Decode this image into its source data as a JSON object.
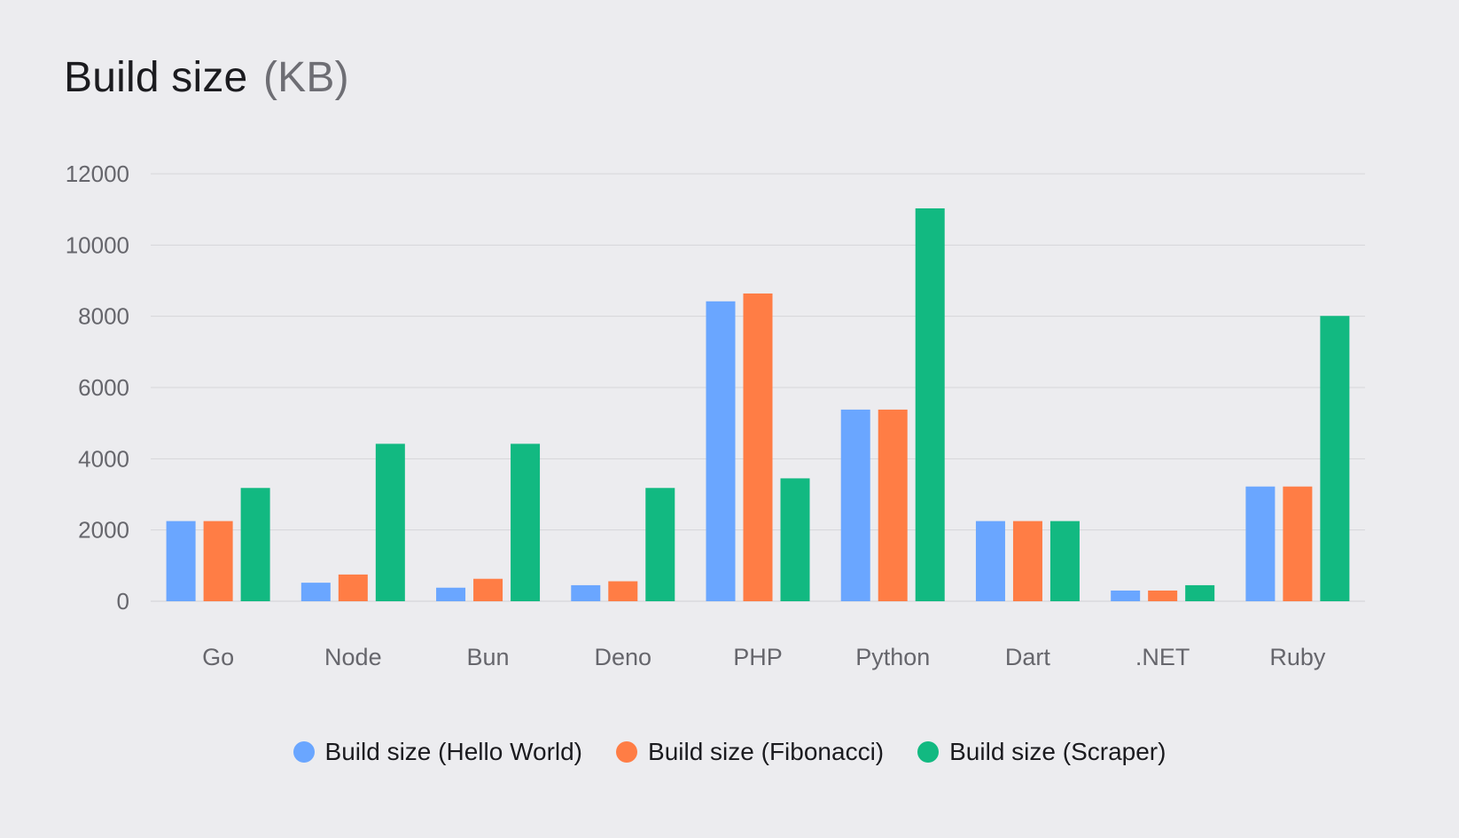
{
  "header": {
    "title": "Build size",
    "unit": "(KB)"
  },
  "chart_data": {
    "type": "bar",
    "title": "Build size (KB)",
    "xlabel": "",
    "ylabel": "",
    "ylim": [
      0,
      12000
    ],
    "yticks": [
      0,
      2000,
      4000,
      6000,
      8000,
      10000,
      12000
    ],
    "grid": true,
    "legend_position": "bottom-center",
    "categories": [
      "Go",
      "Node",
      "Bun",
      "Deno",
      "PHP",
      "Python",
      "Dart",
      ".NET",
      "Ruby"
    ],
    "series": [
      {
        "name": "Build size (Hello World)",
        "color": "#6aa6ff",
        "values": [
          2250,
          520,
          380,
          450,
          8420,
          5380,
          2250,
          300,
          3220
        ]
      },
      {
        "name": "Build size (Fibonacci)",
        "color": "#ff7d45",
        "values": [
          2250,
          750,
          630,
          560,
          8640,
          5380,
          2250,
          300,
          3220
        ]
      },
      {
        "name": "Build size (Scraper)",
        "color": "#12b981",
        "values": [
          3180,
          4420,
          4420,
          3180,
          3450,
          11030,
          2250,
          450,
          8010
        ]
      }
    ]
  }
}
